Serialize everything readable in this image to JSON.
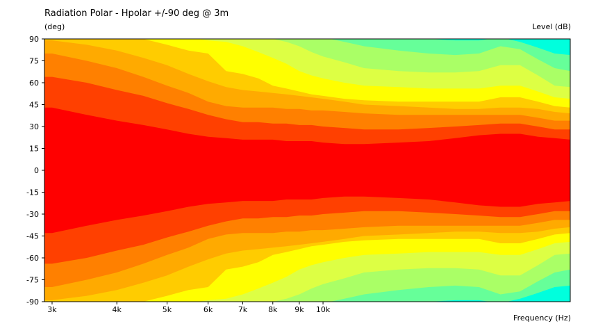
{
  "chart_data": {
    "type": "heatmap",
    "title": "Radiation Polar - Hpolar +/-90 deg @ 3m",
    "ylabel": "(deg)",
    "colorbar_label": "Level (dB)",
    "xlabel": "Frequency (Hz)",
    "xscale": "log",
    "xlim": [
      2900,
      30000
    ],
    "ylim": [
      -90,
      90
    ],
    "x_ticks": [
      {
        "label": "3k",
        "value": 3000
      },
      {
        "label": "4k",
        "value": 4000
      },
      {
        "label": "5k",
        "value": 5000
      },
      {
        "label": "6k",
        "value": 6000
      },
      {
        "label": "7k",
        "value": 7000
      },
      {
        "label": "8k",
        "value": 8000
      },
      {
        "label": "9k",
        "value": 9000
      },
      {
        "label": "10k",
        "value": 10000
      }
    ],
    "y_ticks": [
      90,
      75,
      60,
      45,
      30,
      15,
      0,
      -15,
      -30,
      -45,
      -60,
      -75,
      -90
    ],
    "colors": [
      "#00ffdd",
      "#66ff99",
      "#aaff66",
      "#ddff44",
      "#ffff00",
      "#ffcc00",
      "#ffaa00",
      "#ff8000",
      "#ff4000",
      "#ff0000"
    ],
    "x": [
      2900,
      3000,
      3500,
      4000,
      4500,
      5000,
      5500,
      6000,
      6500,
      7000,
      7500,
      8000,
      8500,
      9000,
      9500,
      10000,
      11000,
      12000,
      14000,
      16000,
      18000,
      20000,
      22000,
      24000,
      26000,
      28000,
      30000
    ],
    "boundaries": [
      [
        43,
        43,
        38,
        34,
        31,
        28,
        25,
        23,
        22,
        21,
        21,
        21,
        20,
        20,
        20,
        19,
        18,
        18,
        19,
        20,
        22,
        24,
        25,
        25,
        23,
        22,
        21
      ],
      [
        64,
        64,
        60,
        55,
        51,
        46,
        42,
        38,
        35,
        33,
        33,
        32,
        32,
        31,
        31,
        30,
        29,
        28,
        28,
        29,
        30,
        31,
        32,
        32,
        30,
        28,
        28
      ],
      [
        80,
        80,
        75,
        70,
        64,
        58,
        53,
        47,
        44,
        43,
        43,
        43,
        42,
        42,
        41,
        41,
        40,
        39,
        38,
        38,
        38,
        38,
        38,
        38,
        36,
        34,
        34
      ],
      [
        89,
        89,
        86,
        82,
        77,
        72,
        66,
        61,
        57,
        55,
        54,
        53,
        52,
        51,
        50,
        49,
        47,
        45,
        44,
        43,
        42,
        42,
        43,
        43,
        42,
        40,
        39
      ],
      [
        91,
        91,
        91,
        91,
        90,
        86,
        82,
        80,
        68,
        66,
        63,
        58,
        56,
        54,
        52,
        51,
        49,
        48,
        47,
        47,
        47,
        47,
        50,
        50,
        47,
        44,
        43
      ],
      [
        91,
        91,
        91,
        91,
        91,
        91,
        91,
        89,
        88,
        85,
        81,
        77,
        73,
        68,
        65,
        63,
        60,
        58,
        57,
        56,
        56,
        56,
        58,
        58,
        54,
        50,
        49
      ],
      [
        91,
        91,
        91,
        91,
        91,
        91,
        91,
        91,
        91,
        91,
        91,
        90,
        88,
        85,
        81,
        78,
        74,
        70,
        68,
        67,
        67,
        68,
        72,
        72,
        65,
        58,
        57
      ],
      [
        91,
        91,
        91,
        91,
        91,
        91,
        91,
        91,
        91,
        91,
        91,
        91,
        91,
        91,
        91,
        91,
        88,
        85,
        82,
        80,
        79,
        80,
        85,
        83,
        76,
        70,
        68
      ],
      [
        91,
        91,
        91,
        91,
        91,
        91,
        91,
        91,
        91,
        91,
        91,
        91,
        91,
        91,
        91,
        91,
        91,
        91,
        91,
        90,
        89,
        89,
        91,
        88,
        84,
        80,
        79
      ]
    ]
  }
}
